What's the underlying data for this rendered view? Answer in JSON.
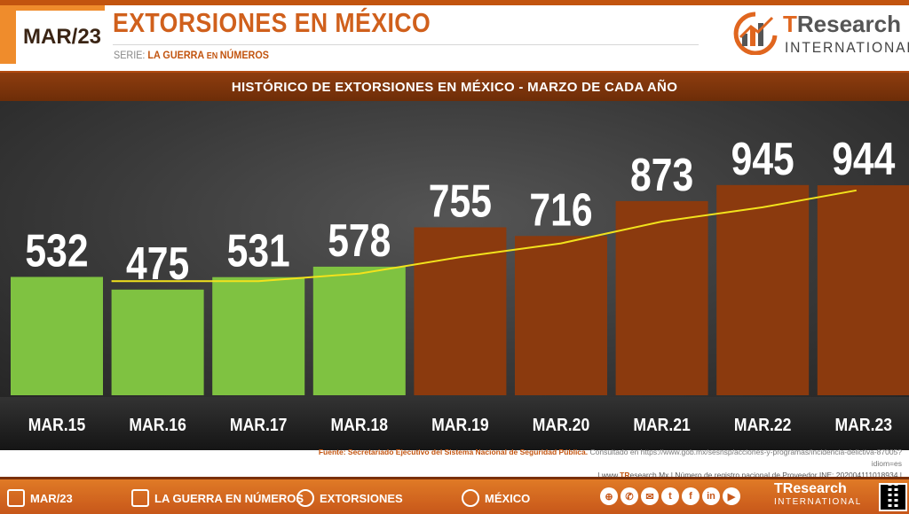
{
  "header": {
    "date_label": "MAR/23",
    "title": "EXTORSIONES EN MÉXICO",
    "series_prefix": "SERIE: ",
    "series_name_a": "LA GUERRA",
    "series_name_mid": " EN ",
    "series_name_b": "NÚMEROS"
  },
  "logo": {
    "brand_t": "T",
    "brand_rest": "Research",
    "brand_sub": "INTERNATIONAL"
  },
  "chart_data": {
    "type": "bar",
    "title": "HISTÓRICO DE EXTORSIONES EN MÉXICO - MARZO DE CADA AÑO",
    "categories": [
      "MAR.15",
      "MAR.16",
      "MAR.17",
      "MAR.18",
      "MAR.19",
      "MAR.20",
      "MAR.21",
      "MAR.22",
      "MAR.23"
    ],
    "values": [
      532,
      475,
      531,
      578,
      755,
      716,
      873,
      945,
      944
    ],
    "value_labels": [
      "532",
      "475",
      "531",
      "578",
      "755",
      "716",
      "873",
      "945",
      "944"
    ],
    "trend_line": {
      "x": [
        "MAR.16",
        "MAR.17",
        "MAR.18",
        "MAR.19",
        "MAR.20",
        "MAR.21",
        "MAR.22",
        "MAR.23"
      ],
      "values": [
        513,
        513,
        547,
        621,
        683,
        781,
        845,
        921
      ]
    },
    "bar_colors": [
      "#7fc241",
      "#7fc241",
      "#7fc241",
      "#7fc241",
      "#8b3a0e",
      "#8b3a0e",
      "#8b3a0e",
      "#8b3a0e",
      "#8b3a0e"
    ],
    "trend_color": "#f2e21c",
    "xlabel": "",
    "ylabel": "",
    "ylim": [
      0,
      1000
    ],
    "grid": false,
    "legend": "none"
  },
  "source": {
    "label": "Fuente: Secretariado Ejecutivo del Sistema Nacional de Seguridad Pública.",
    "consulted": " Consultado en https://www.gob.mx/sesnsp/acciones-y-programas/incidencia-delictiva-87005?idiom=es",
    "web_prefix": "| www.",
    "web_brand": "TR",
    "web_suffix": "esearch.Mx | Número de registro nacional de Proveedor INE: 202004111018934 |"
  },
  "footer": {
    "date": "MAR/23",
    "series": "LA GUERRA EN NÚMEROS",
    "topic": "EXTORSIONES",
    "country": "MÉXICO",
    "social_icons": [
      "web-icon",
      "whatsapp-icon",
      "email-icon",
      "twitter-icon",
      "facebook-icon",
      "linkedin-icon",
      "youtube-icon"
    ],
    "brand_a": "TResearch",
    "brand_b": "INTERNATIONAL"
  },
  "colors": {
    "accent_orange": "#ef8c2c",
    "dark_orange": "#c2540f",
    "bar_green": "#7fc241",
    "bar_brown": "#8b3a0e"
  }
}
